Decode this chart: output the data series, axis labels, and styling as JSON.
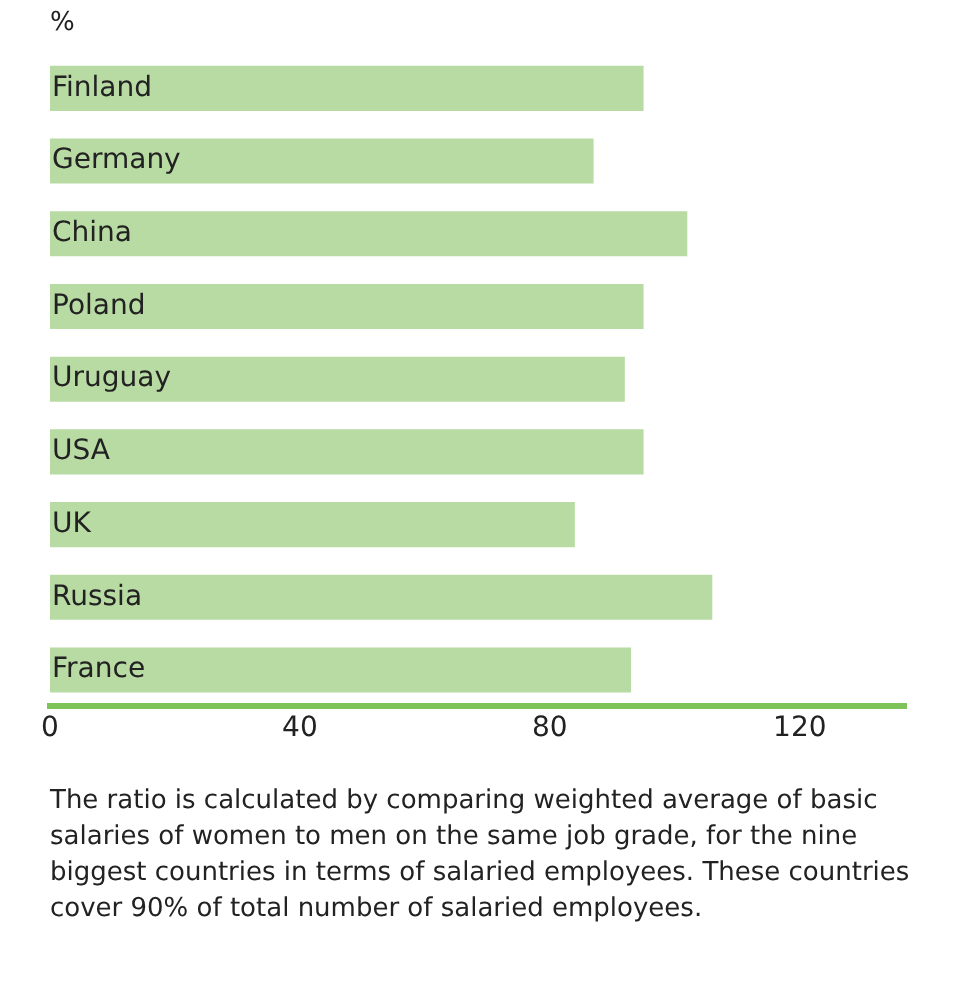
{
  "chart_data": {
    "type": "bar",
    "orientation": "horizontal",
    "xlabel": "%",
    "categories": [
      "Finland",
      "Germany",
      "China",
      "Poland",
      "Uruguay",
      "USA",
      "UK",
      "Russia",
      "France"
    ],
    "values": [
      95,
      87,
      102,
      95,
      92,
      95,
      84,
      106,
      93
    ],
    "color": "#b8dba3",
    "xlim": [
      0,
      137
    ],
    "xticks": [
      0,
      40,
      80,
      120
    ],
    "grid": false,
    "legend": false,
    "annotations": [
      "The ratio is calculated by comparing weighted average of basic salaries of women to men on the same job grade, for the nine biggest countries in terms of salaried employees. These countries cover 90% of total number of salaried employees."
    ]
  }
}
